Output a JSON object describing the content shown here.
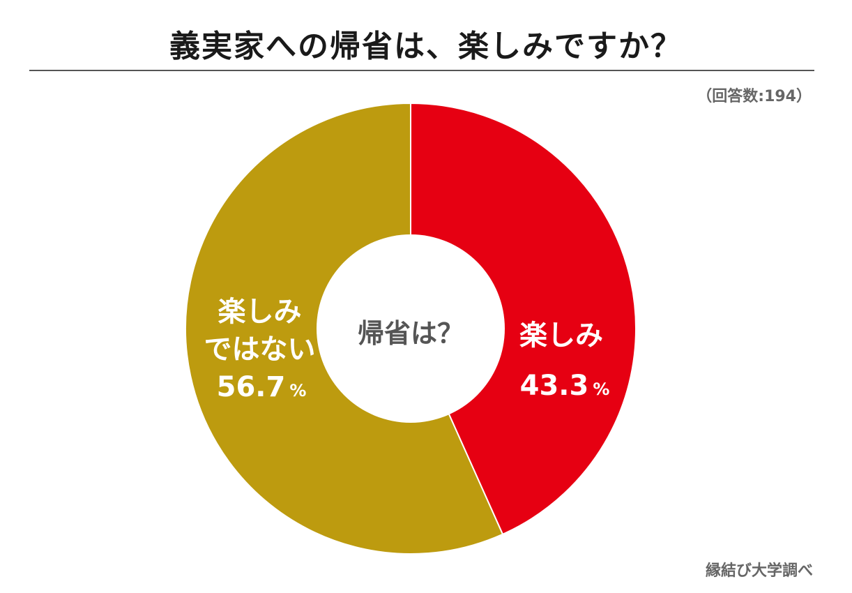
{
  "chart_data": {
    "type": "pie",
    "title": "義実家への帰省は、楽しみですか？",
    "respondents": "（回答数:194）",
    "center_label": "帰省は？",
    "slices": [
      {
        "label": "楽しみ",
        "value": 43.3,
        "color": "#e60012"
      },
      {
        "label_lines": [
          "楽しみ",
          "ではない"
        ],
        "value": 56.7,
        "color": "#bd9b0f"
      }
    ],
    "unit": "%",
    "source": "縁結び大学調べ"
  }
}
